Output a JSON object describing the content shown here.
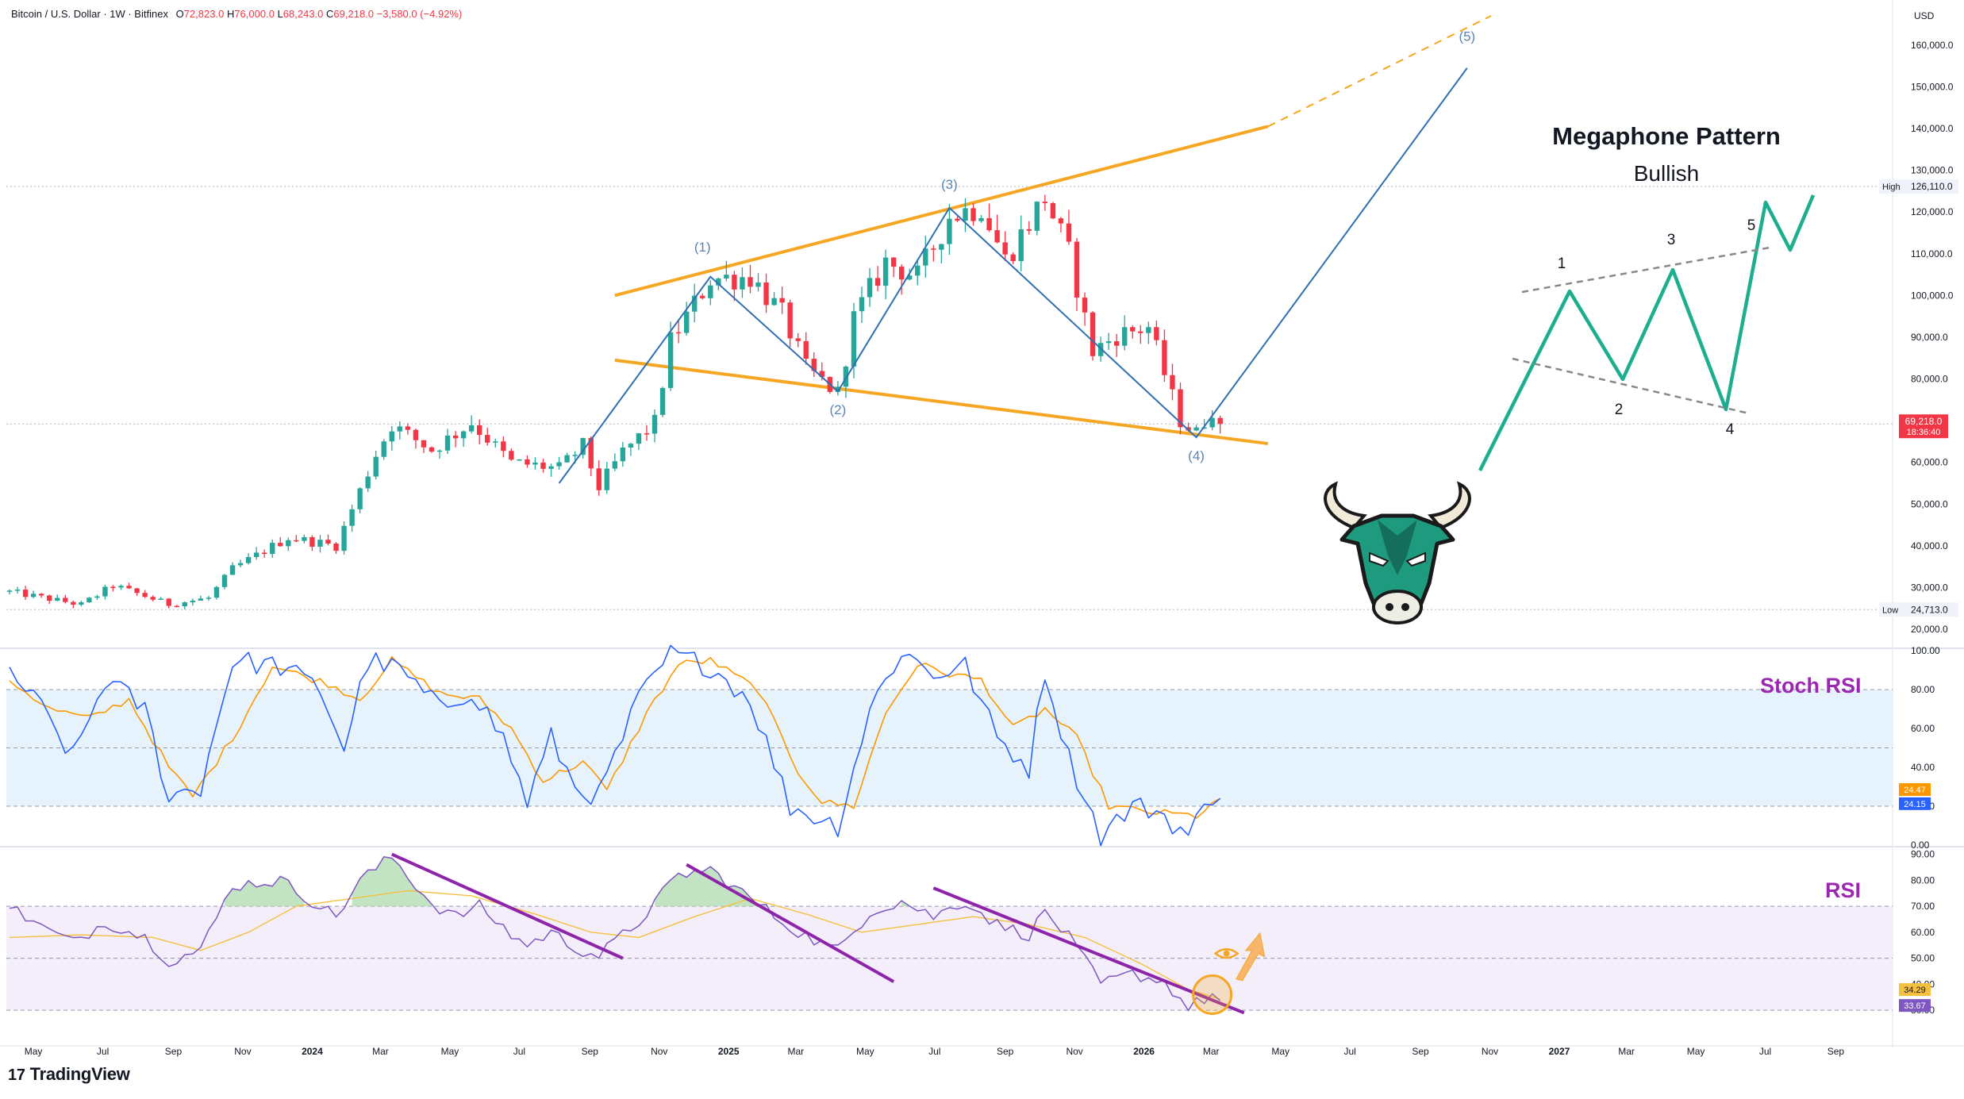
{
  "header": {
    "symbol": "Bitcoin / U.S. Dollar · 1W · Bitfinex",
    "open_label": "O",
    "open": "72,823.0",
    "high_label": "H",
    "high": "76,000.0",
    "low_label": "L",
    "low": "68,243.0",
    "close_label": "C",
    "close": "69,218.0",
    "change": "−3,580.0 (−4.92%)"
  },
  "brand": {
    "name": "TradingView",
    "mark": "17"
  },
  "annotation": {
    "title": "Megaphone Pattern",
    "subtitle": "Bullish"
  },
  "colors": {
    "up": "#26a69a",
    "down": "#f23645",
    "trendline": "#f5a623",
    "wave": "#2f6fb3",
    "pattern": "#1cae8f",
    "divergence": "#8e24aa",
    "stoch_k": "#2962ff",
    "stoch_d": "#ff9800",
    "rsi": "#7e57c2",
    "rsi_ma": "#f5c040"
  },
  "chart_data": [
    {
      "type": "candlestick",
      "currency": "USD",
      "ylim": [
        14500,
        167000
      ],
      "price_ticks": [
        "20,000.0",
        "30,000.0",
        "40,000.0",
        "50,000.0",
        "60,000.0",
        "70,000.0",
        "80,000.0",
        "90,000.0",
        "100,000.0",
        "110,000.0",
        "120,000.0",
        "130,000.0",
        "140,000.0",
        "150,000.0",
        "160,000.0"
      ],
      "time_ticks": [
        "May",
        "Jul",
        "Sep",
        "Nov",
        "2024",
        "Mar",
        "May",
        "Jul",
        "Sep",
        "Nov",
        "2025",
        "Mar",
        "May",
        "Jul",
        "Sep",
        "Nov",
        "2026",
        "Mar",
        "May",
        "Jul",
        "Sep",
        "Nov",
        "2027",
        "Mar",
        "May",
        "Jul",
        "Sep"
      ],
      "bold_time_ticks": [
        "2024",
        "2025",
        "2026",
        "2027"
      ],
      "price_anchors": [
        [
          "2023-04-10",
          29000
        ],
        [
          "2023-06-12",
          25900
        ],
        [
          "2023-07-10",
          30500
        ],
        [
          "2023-08-28",
          26000
        ],
        [
          "2023-10-02",
          27500
        ],
        [
          "2023-10-23",
          34500
        ],
        [
          "2023-12-11",
          42000
        ],
        [
          "2024-01-22",
          40000
        ],
        [
          "2024-02-26",
          62000
        ],
        [
          "2024-03-11",
          69000
        ],
        [
          "2024-04-15",
          63000
        ],
        [
          "2024-05-20",
          69500
        ],
        [
          "2024-06-24",
          60000
        ],
        [
          "2024-08-05",
          58500
        ],
        [
          "2024-08-26",
          64000
        ],
        [
          "2024-09-09",
          54000
        ],
        [
          "2024-09-30",
          62500
        ],
        [
          "2024-10-28",
          69500
        ],
        [
          "2024-11-11",
          89000
        ],
        [
          "2024-12-16",
          104000
        ],
        [
          "2025-01-20",
          104500
        ],
        [
          "2025-02-17",
          95500
        ],
        [
          "2025-03-10",
          82500
        ],
        [
          "2025-04-07",
          76500
        ],
        [
          "2025-04-21",
          94500
        ],
        [
          "2025-05-19",
          108000
        ],
        [
          "2025-06-16",
          104500
        ],
        [
          "2025-07-14",
          119000
        ],
        [
          "2025-08-11",
          121500
        ],
        [
          "2025-09-01",
          108500
        ],
        [
          "2025-10-06",
          123500
        ],
        [
          "2025-10-27",
          110000
        ],
        [
          "2025-11-17",
          86500
        ],
        [
          "2025-12-08",
          90500
        ],
        [
          "2026-01-05",
          92500
        ],
        [
          "2026-02-02",
          70000
        ],
        [
          "2026-02-16",
          67000
        ],
        [
          "2026-03-02",
          72800
        ],
        [
          "2026-03-09",
          69218
        ]
      ],
      "last_price": "69,218.0",
      "countdown": "18:36:40",
      "high_marker": {
        "label": "High",
        "value": "126,110.0",
        "price": 126110
      },
      "low_marker": {
        "label": "Low",
        "value": "24,713.0",
        "price": 24713
      },
      "megaphone_upper": [
        [
          "2024-09-23",
          100000
        ],
        [
          "2026-04-20",
          140500
        ],
        [
          "2026-11-02",
          167000
        ]
      ],
      "megaphone_lower": [
        [
          "2024-09-23",
          84500
        ],
        [
          "2026-04-20",
          64500
        ]
      ],
      "wave_path": [
        [
          "2024-08-05",
          55000
        ],
        [
          "2024-12-16",
          104500
        ],
        [
          "2025-04-07",
          77000
        ],
        [
          "2025-07-14",
          121000
        ],
        [
          "2026-02-16",
          66000
        ],
        [
          "2026-10-12",
          154500
        ]
      ],
      "wave_labels": [
        {
          "label": "(1)",
          "date": "2024-12-09",
          "price": 110500
        },
        {
          "label": "(2)",
          "date": "2025-04-07",
          "price": 71500
        },
        {
          "label": "(3)",
          "date": "2025-07-14",
          "price": 125500
        },
        {
          "label": "(4)",
          "date": "2026-02-16",
          "price": 60500
        },
        {
          "label": "(5)",
          "date": "2026-10-12",
          "price": 161000
        }
      ],
      "diagram_labels": [
        "1",
        "2",
        "3",
        "4",
        "5"
      ]
    },
    {
      "type": "line",
      "name": "Stoch RSI",
      "ylim": [
        0,
        100
      ],
      "ticks": [
        "100.00",
        "80.00",
        "60.00",
        "40.00",
        "20.00",
        "0.00"
      ],
      "bands": [
        20,
        50,
        80
      ],
      "k_last": "24.15",
      "d_last": "24.47",
      "k_anchors": [
        [
          "2023-04-10",
          90
        ],
        [
          "2023-05-08",
          70
        ],
        [
          "2023-06-05",
          45
        ],
        [
          "2023-07-03",
          85
        ],
        [
          "2023-08-07",
          70
        ],
        [
          "2023-08-28",
          25
        ],
        [
          "2023-09-25",
          30
        ],
        [
          "2023-10-23",
          95
        ],
        [
          "2023-12-04",
          92
        ],
        [
          "2024-01-08",
          80
        ],
        [
          "2024-01-29",
          50
        ],
        [
          "2024-02-19",
          95
        ],
        [
          "2024-03-18",
          90
        ],
        [
          "2024-04-22",
          70
        ],
        [
          "2024-05-20",
          80
        ],
        [
          "2024-06-17",
          55
        ],
        [
          "2024-07-08",
          22
        ],
        [
          "2024-07-29",
          55
        ],
        [
          "2024-08-19",
          30
        ],
        [
          "2024-09-09",
          25
        ],
        [
          "2024-10-14",
          75
        ],
        [
          "2024-11-11",
          98
        ],
        [
          "2024-12-16",
          92
        ],
        [
          "2025-01-20",
          75
        ],
        [
          "2025-02-24",
          20
        ],
        [
          "2025-03-17",
          15
        ],
        [
          "2025-04-07",
          10
        ],
        [
          "2025-05-05",
          70
        ],
        [
          "2025-06-02",
          100
        ],
        [
          "2025-06-30",
          88
        ],
        [
          "2025-07-28",
          92
        ],
        [
          "2025-08-25",
          55
        ],
        [
          "2025-09-22",
          40
        ],
        [
          "2025-10-06",
          90
        ],
        [
          "2025-10-27",
          45
        ],
        [
          "2025-11-24",
          5
        ],
        [
          "2025-12-22",
          20
        ],
        [
          "2026-01-12",
          18
        ],
        [
          "2026-02-09",
          5
        ],
        [
          "2026-03-02",
          25
        ],
        [
          "2026-03-09",
          24
        ]
      ],
      "d_anchors": [
        [
          "2023-04-10",
          85
        ],
        [
          "2023-05-15",
          70
        ],
        [
          "2023-06-19",
          65
        ],
        [
          "2023-07-24",
          75
        ],
        [
          "2023-08-28",
          40
        ],
        [
          "2023-09-18",
          25
        ],
        [
          "2023-10-23",
          55
        ],
        [
          "2023-11-27",
          92
        ],
        [
          "2024-01-15",
          83
        ],
        [
          "2024-02-12",
          75
        ],
        [
          "2024-03-11",
          95
        ],
        [
          "2024-04-22",
          78
        ],
        [
          "2024-05-27",
          75
        ],
        [
          "2024-06-24",
          60
        ],
        [
          "2024-07-22",
          33
        ],
        [
          "2024-08-26",
          43
        ],
        [
          "2024-09-16",
          28
        ],
        [
          "2024-10-21",
          68
        ],
        [
          "2024-11-18",
          93
        ],
        [
          "2024-12-16",
          95
        ],
        [
          "2025-01-27",
          80
        ],
        [
          "2025-03-03",
          38
        ],
        [
          "2025-03-24",
          22
        ],
        [
          "2025-04-21",
          20
        ],
        [
          "2025-05-19",
          68
        ],
        [
          "2025-06-16",
          93
        ],
        [
          "2025-07-14",
          88
        ],
        [
          "2025-08-11",
          85
        ],
        [
          "2025-09-08",
          60
        ],
        [
          "2025-10-06",
          70
        ],
        [
          "2025-11-03",
          55
        ],
        [
          "2025-12-01",
          20
        ],
        [
          "2026-01-05",
          17
        ],
        [
          "2026-02-16",
          15
        ],
        [
          "2026-03-09",
          24
        ]
      ]
    },
    {
      "type": "line",
      "name": "RSI",
      "ylim": [
        27,
        92
      ],
      "ticks": [
        "90.00",
        "80.00",
        "70.00",
        "60.00",
        "50.00",
        "40.00",
        "30.00"
      ],
      "bands": [
        30,
        50,
        70
      ],
      "rsi_last": "33.67",
      "ma_last": "34.29",
      "rsi_anchors": [
        [
          "2023-04-10",
          70
        ],
        [
          "2023-05-08",
          62
        ],
        [
          "2023-06-05",
          56
        ],
        [
          "2023-07-03",
          64
        ],
        [
          "2023-08-07",
          58
        ],
        [
          "2023-08-28",
          49
        ],
        [
          "2023-09-25",
          53
        ],
        [
          "2023-10-23",
          78
        ],
        [
          "2023-12-04",
          80
        ],
        [
          "2024-01-08",
          70
        ],
        [
          "2024-01-22",
          66
        ],
        [
          "2024-02-12",
          80
        ],
        [
          "2024-03-11",
          89
        ],
        [
          "2024-04-15",
          71
        ],
        [
          "2024-05-06",
          66
        ],
        [
          "2024-05-27",
          70
        ],
        [
          "2024-06-24",
          59
        ],
        [
          "2024-07-08",
          55
        ],
        [
          "2024-07-29",
          60
        ],
        [
          "2024-08-19",
          54
        ],
        [
          "2024-09-09",
          51
        ],
        [
          "2024-10-14",
          64
        ],
        [
          "2024-11-18",
          82
        ],
        [
          "2024-12-16",
          84
        ],
        [
          "2025-01-20",
          73
        ],
        [
          "2025-02-24",
          62
        ],
        [
          "2025-03-17",
          57
        ],
        [
          "2025-04-07",
          53
        ],
        [
          "2025-05-05",
          68
        ],
        [
          "2025-06-02",
          72
        ],
        [
          "2025-06-30",
          66
        ],
        [
          "2025-07-28",
          72
        ],
        [
          "2025-08-25",
          63
        ],
        [
          "2025-09-22",
          59
        ],
        [
          "2025-10-06",
          68
        ],
        [
          "2025-10-27",
          58
        ],
        [
          "2025-11-24",
          40
        ],
        [
          "2025-12-22",
          44
        ],
        [
          "2026-01-19",
          41
        ],
        [
          "2026-02-09",
          31
        ],
        [
          "2026-03-02",
          36
        ],
        [
          "2026-03-09",
          33.67
        ]
      ],
      "ma_anchors": [
        [
          "2023-04-10",
          58
        ],
        [
          "2023-06-12",
          59
        ],
        [
          "2023-08-14",
          58
        ],
        [
          "2023-09-25",
          53
        ],
        [
          "2023-11-06",
          60
        ],
        [
          "2023-12-18",
          70
        ],
        [
          "2024-02-05",
          73
        ],
        [
          "2024-03-25",
          76
        ],
        [
          "2024-05-20",
          74
        ],
        [
          "2024-07-15",
          67
        ],
        [
          "2024-09-02",
          60
        ],
        [
          "2024-10-14",
          58
        ],
        [
          "2024-12-02",
          66
        ],
        [
          "2025-01-20",
          73
        ],
        [
          "2025-03-10",
          67
        ],
        [
          "2025-04-28",
          60
        ],
        [
          "2025-06-16",
          63
        ],
        [
          "2025-08-04",
          66
        ],
        [
          "2025-09-22",
          63
        ],
        [
          "2025-11-10",
          58
        ],
        [
          "2025-12-29",
          48
        ],
        [
          "2026-02-09",
          38
        ],
        [
          "2026-03-09",
          34.29
        ]
      ]
    }
  ],
  "pane_titles": {
    "stoch": "Stoch RSI",
    "rsi": "RSI"
  }
}
